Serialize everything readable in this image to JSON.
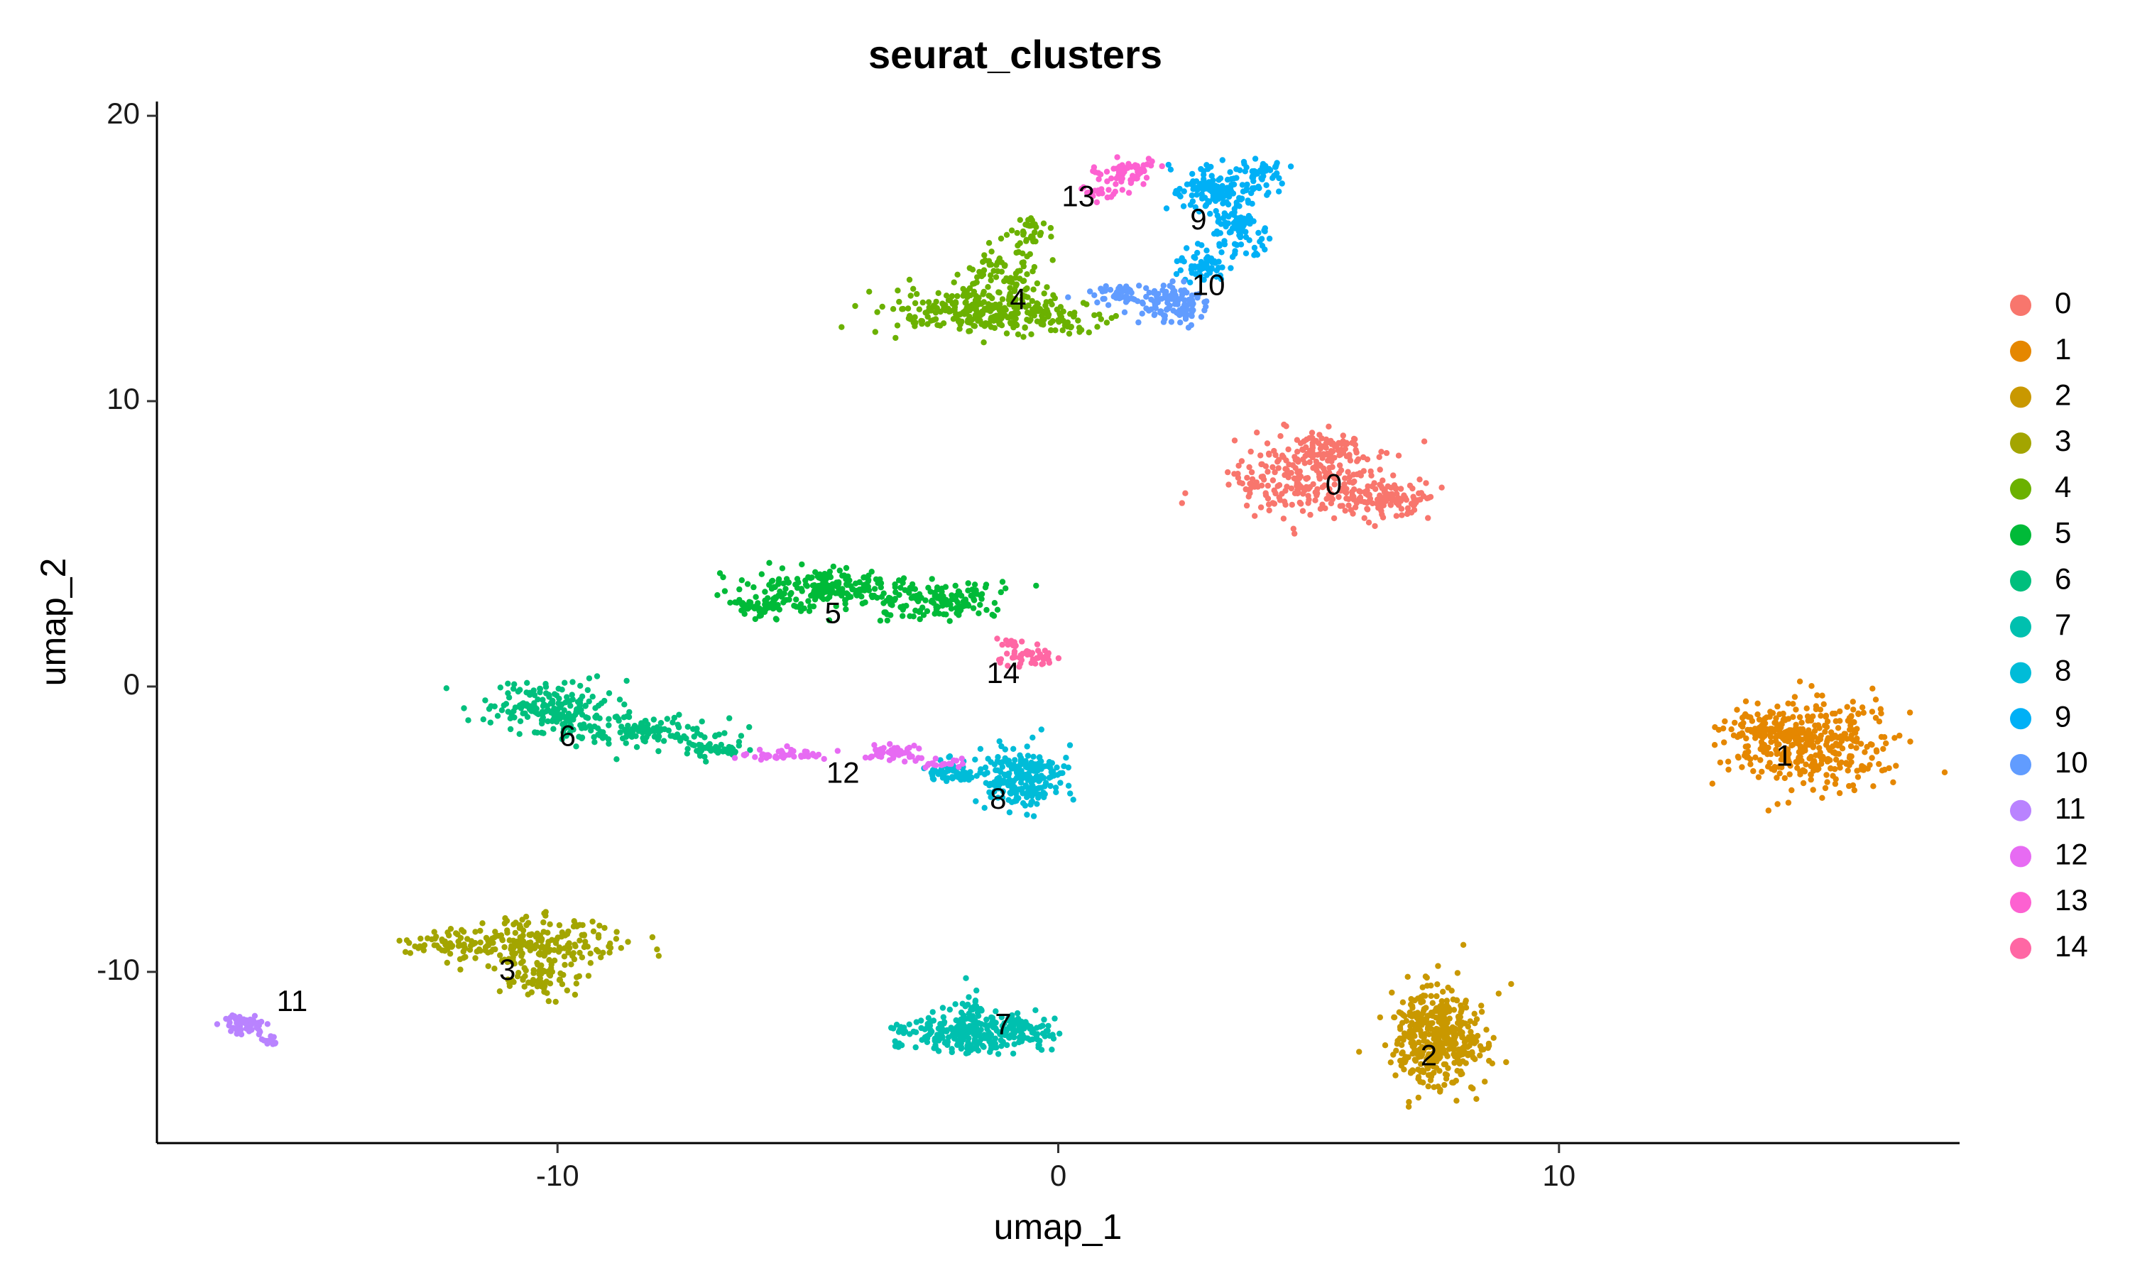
{
  "chart_data": {
    "type": "scatter",
    "title": "seurat_clusters",
    "xlabel": "umap_1",
    "ylabel": "umap_2",
    "xlim": [
      -18,
      18
    ],
    "ylim": [
      -16,
      20.5
    ],
    "x_ticks": [
      -10,
      0,
      10
    ],
    "y_ticks": [
      -10,
      0,
      10,
      20
    ],
    "grid": false,
    "legend_position": "right",
    "clusters": [
      {
        "name": "0",
        "color": "#F8766D",
        "label_x": 5.5,
        "label_y": 7.0
      },
      {
        "name": "1",
        "color": "#E58700",
        "label_x": 14.5,
        "label_y": -2.5
      },
      {
        "name": "2",
        "color": "#C99800",
        "label_x": 7.4,
        "label_y": -13.0
      },
      {
        "name": "3",
        "color": "#A3A500",
        "label_x": -11.0,
        "label_y": -10.0
      },
      {
        "name": "4",
        "color": "#6BB100",
        "label_x": -0.8,
        "label_y": 13.5
      },
      {
        "name": "5",
        "color": "#00BA38",
        "label_x": -4.5,
        "label_y": 2.5
      },
      {
        "name": "6",
        "color": "#00BF7D",
        "label_x": -9.8,
        "label_y": -1.8
      },
      {
        "name": "7",
        "color": "#00C0AF",
        "label_x": -1.1,
        "label_y": -11.9
      },
      {
        "name": "8",
        "color": "#00BCD8",
        "label_x": -1.2,
        "label_y": -4.0
      },
      {
        "name": "9",
        "color": "#00B0F6",
        "label_x": 2.8,
        "label_y": 16.3
      },
      {
        "name": "10",
        "color": "#619CFF",
        "label_x": 3.0,
        "label_y": 14.0
      },
      {
        "name": "11",
        "color": "#B983FF",
        "label_x": -15.3,
        "label_y": -11.1
      },
      {
        "name": "12",
        "color": "#E76BF3",
        "label_x": -4.3,
        "label_y": -3.1
      },
      {
        "name": "13",
        "color": "#FD61D1",
        "label_x": 0.4,
        "label_y": 17.1
      },
      {
        "name": "14",
        "color": "#FF67A4",
        "label_x": -1.1,
        "label_y": 0.4
      }
    ]
  }
}
